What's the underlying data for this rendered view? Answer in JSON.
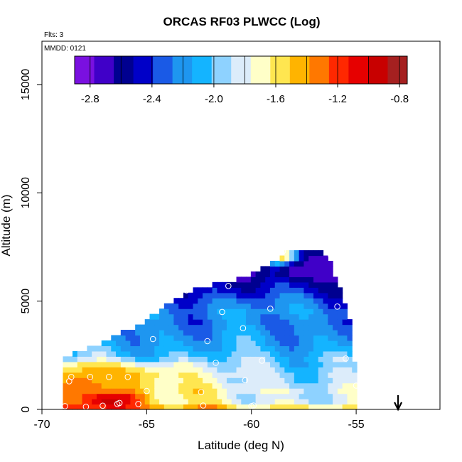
{
  "chart_data": {
    "type": "heatmap",
    "title": "ORCAS RF03 PLWCC (Log)",
    "annotations": {
      "flights": "Flts: 3",
      "date": "MMDD: 0121"
    },
    "xlabel": "Latitude (deg N)",
    "ylabel": "Altitude (m)",
    "xlim": [
      -70,
      -51
    ],
    "ylim": [
      0,
      17000
    ],
    "x_ticks": [
      -70,
      -65,
      -60,
      -55
    ],
    "x_tick_labels": [
      "-70",
      "-65",
      "-60",
      "-55"
    ],
    "y_ticks": [
      0,
      5000,
      10000,
      15000
    ],
    "y_tick_labels": [
      "0",
      "5000",
      "10000",
      "15000"
    ],
    "colorbar": {
      "range": [
        -2.9,
        -0.75
      ],
      "ticks": [
        -2.8,
        -2.4,
        -2.0,
        -1.6,
        -1.2,
        -0.8
      ],
      "tick_labels": [
        "-2.8",
        "-2.4",
        "-2.0",
        "-1.6",
        "-1.2",
        "-0.8"
      ],
      "colors": [
        "#7a10e0",
        "#4000c8",
        "#000090",
        "#0000c8",
        "#1a5ae6",
        "#1e96f0",
        "#14b4ff",
        "#8ed2ff",
        "#dcecfa",
        "#ffffc8",
        "#ffe650",
        "#ffb400",
        "#ff7800",
        "#ff2800",
        "#e60000",
        "#c80000",
        "#a52020"
      ]
    },
    "field": {
      "lat_range": [
        -69.0,
        -55.0
      ],
      "alt_range": [
        0,
        7400
      ],
      "lat_step": 0.23,
      "alt_step": 245,
      "top_boundary": [
        [
          -69.0,
          2300
        ],
        [
          -68.0,
          2600
        ],
        [
          -67.0,
          3000
        ],
        [
          -66.0,
          3500
        ],
        [
          -65.0,
          4000
        ],
        [
          -64.0,
          4700
        ],
        [
          -63.0,
          5300
        ],
        [
          -62.0,
          5600
        ],
        [
          -61.0,
          5800
        ],
        [
          -60.0,
          6100
        ],
        [
          -59.0,
          6700
        ],
        [
          -58.0,
          7300
        ],
        [
          -57.0,
          7200
        ],
        [
          -56.3,
          7000
        ],
        [
          -55.3,
          4000
        ],
        [
          -55.0,
          1200
        ]
      ],
      "profile": [
        [
          0,
          -1.55
        ],
        [
          200,
          -1.5
        ],
        [
          350,
          -1.7
        ],
        [
          500,
          -1.85
        ],
        [
          700,
          -1.65
        ],
        [
          900,
          -1.7
        ],
        [
          1100,
          -1.75
        ],
        [
          1300,
          -1.8
        ],
        [
          1500,
          -1.78
        ],
        [
          1800,
          -1.82
        ],
        [
          2100,
          -1.9
        ],
        [
          2500,
          -2.05
        ],
        [
          3000,
          -2.15
        ],
        [
          3500,
          -2.2
        ],
        [
          4000,
          -2.25
        ],
        [
          4500,
          -2.2
        ],
        [
          5000,
          -2.3
        ],
        [
          5500,
          -2.45
        ],
        [
          6000,
          -2.55
        ],
        [
          6500,
          -2.7
        ],
        [
          7000,
          -2.65
        ],
        [
          7400,
          -2.6
        ]
      ],
      "hotspots": [
        [
          -66.8,
          500,
          -0.8,
          1.6,
          500
        ],
        [
          -68.0,
          1200,
          -1.3,
          1.8,
          700
        ],
        [
          -66.0,
          1500,
          -1.45,
          2.0,
          600
        ],
        [
          -58.6,
          7050,
          -1.3,
          0.8,
          350
        ],
        [
          -57.7,
          6400,
          -2.7,
          1.0,
          500
        ]
      ]
    },
    "observations": [
      {
        "lat": -68.9,
        "alt": 150
      },
      {
        "lat": -68.7,
        "alt": 1300
      },
      {
        "lat": -68.6,
        "alt": 1500
      },
      {
        "lat": -67.9,
        "alt": 120
      },
      {
        "lat": -67.7,
        "alt": 1500
      },
      {
        "lat": -67.1,
        "alt": 170
      },
      {
        "lat": -66.8,
        "alt": 1500
      },
      {
        "lat": -66.4,
        "alt": 250
      },
      {
        "lat": -66.3,
        "alt": 300
      },
      {
        "lat": -65.9,
        "alt": 1500
      },
      {
        "lat": -65.4,
        "alt": 250
      },
      {
        "lat": -65.0,
        "alt": 850
      },
      {
        "lat": -64.7,
        "alt": 3250
      },
      {
        "lat": -62.4,
        "alt": 800
      },
      {
        "lat": -62.3,
        "alt": 180
      },
      {
        "lat": -62.1,
        "alt": 3150
      },
      {
        "lat": -61.7,
        "alt": 2150
      },
      {
        "lat": -61.4,
        "alt": 4500
      },
      {
        "lat": -61.1,
        "alt": 5700
      },
      {
        "lat": -60.4,
        "alt": 3750
      },
      {
        "lat": -60.3,
        "alt": 1350
      },
      {
        "lat": -60.0,
        "alt": 150
      },
      {
        "lat": -59.9,
        "alt": 180
      },
      {
        "lat": -59.5,
        "alt": 2250
      },
      {
        "lat": -59.1,
        "alt": 4650
      },
      {
        "lat": -58.5,
        "alt": 7300
      },
      {
        "lat": -56.2,
        "alt": 7100
      },
      {
        "lat": -55.9,
        "alt": 4750
      },
      {
        "lat": -55.5,
        "alt": 2350
      },
      {
        "lat": -55.0,
        "alt": 1100
      },
      {
        "lat": -63.1,
        "alt": 5500
      }
    ],
    "marker": {
      "label": "down-arrow",
      "lat": -53.0
    }
  }
}
